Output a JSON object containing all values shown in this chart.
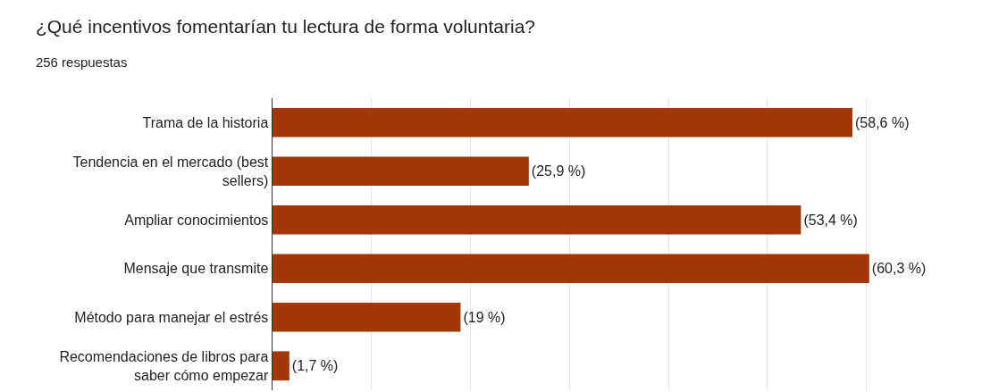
{
  "chart_data": {
    "type": "bar",
    "orientation": "horizontal",
    "title": "¿Qué incentivos fomentarían tu lectura de forma voluntaria?",
    "subtitle": "256 respuestas",
    "categories": [
      "Trama de la historia",
      "Tendencia en el mercado (best sellers)",
      "Ampliar conocimientos",
      "Mensaje que transmite",
      "Método para manejar el estrés",
      "Recomendaciones de libros para saber cómo empezar"
    ],
    "values": [
      58.6,
      25.9,
      53.4,
      60.3,
      19,
      1.7
    ],
    "value_labels": [
      "(58,6 %)",
      "(25,9 %)",
      "(53,4 %)",
      "(60,3 %)",
      "(19 %)",
      "(1,7 %)"
    ],
    "color": "#a33708",
    "grid": "x",
    "tick_labels": "y"
  }
}
